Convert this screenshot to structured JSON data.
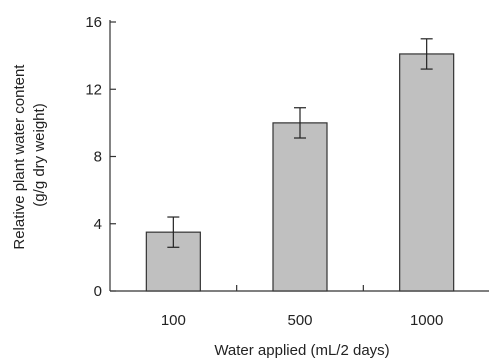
{
  "chart_data": {
    "type": "bar",
    "title": "",
    "categories": [
      "100",
      "500",
      "1000"
    ],
    "values": [
      3.5,
      10.0,
      14.1
    ],
    "errors": [
      0.9,
      0.9,
      0.9
    ],
    "xlabel": "Water applied (mL/2 days)",
    "ylabel_lines": [
      "Relative plant water content",
      "(g/g dry weight)"
    ],
    "ylim": [
      0,
      16
    ],
    "yticks": [
      0,
      4,
      8,
      12,
      16
    ],
    "grid": false,
    "legend": "none",
    "bar_color": "#c0c0c0",
    "bar_edge_color": "#333333"
  }
}
